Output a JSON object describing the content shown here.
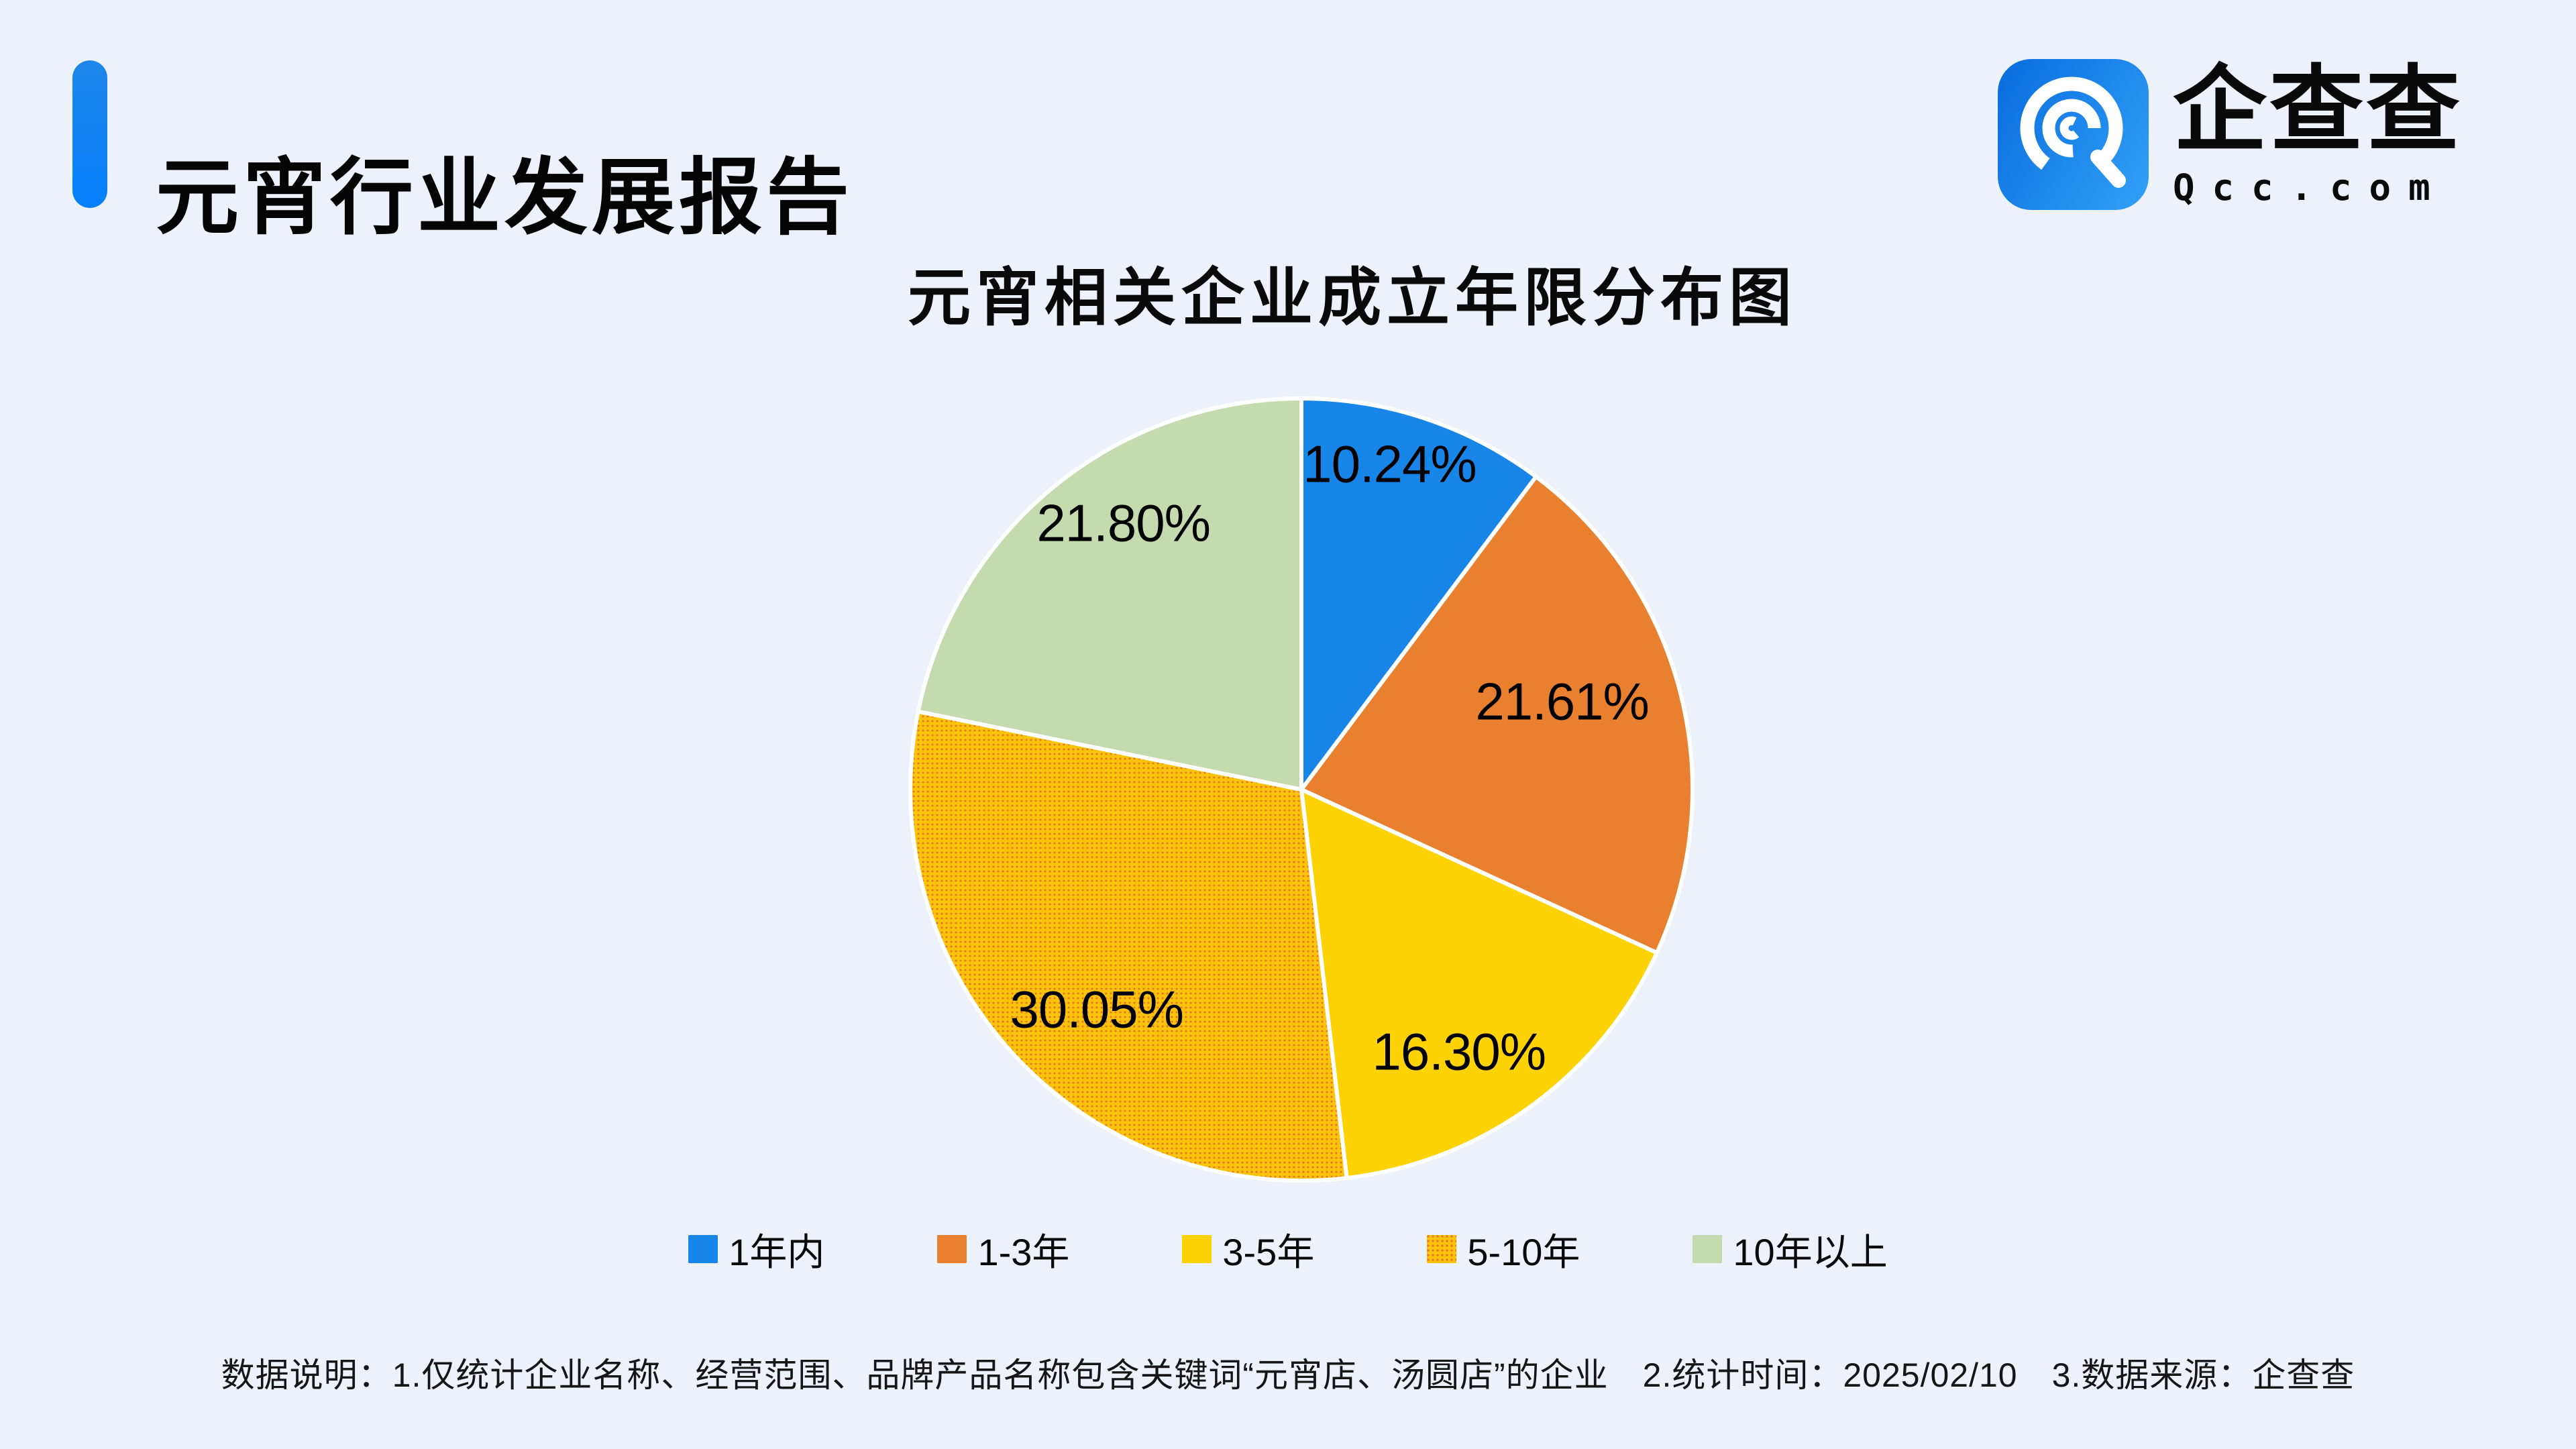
{
  "header": {
    "title": "元宵行业发展报告"
  },
  "brand": {
    "name": "企查查",
    "domain": "Qcc.com",
    "icon": "qcc-spiral-q-icon"
  },
  "chart": {
    "title": "元宵相关企业成立年限分布图"
  },
  "chart_data": {
    "type": "pie",
    "title": "元宵相关企业成立年限分布图",
    "unit": "percent",
    "start_angle_deg": 0,
    "direction": "clockwise",
    "legend_position": "bottom",
    "slices": [
      {
        "name": "1年内",
        "value": 10.24,
        "label": "10.24%",
        "color": "#1886E9",
        "fill_style": "solid",
        "label_pos": {
          "x_pct": 61.2,
          "y_pct": 8.7
        }
      },
      {
        "name": "1-3年",
        "value": 21.61,
        "label": "21.61%",
        "color": "#E8802F",
        "fill_style": "solid",
        "label_pos": {
          "x_pct": 83.1,
          "y_pct": 38.8
        }
      },
      {
        "name": "3-5年",
        "value": 16.3,
        "label": "16.30%",
        "color": "#FDD306",
        "fill_style": "solid",
        "label_pos": {
          "x_pct": 70.0,
          "y_pct": 83.3
        }
      },
      {
        "name": "5-10年",
        "value": 30.05,
        "label": "30.05%",
        "color": "#FBC40A",
        "fill_style": "dots",
        "dot_color": "#E87426",
        "label_pos": {
          "x_pct": 24.0,
          "y_pct": 77.9
        }
      },
      {
        "name": "10年以上",
        "value": 21.8,
        "label": "21.80%",
        "color": "#C5DAAF",
        "fill_style": "solid",
        "label_pos": {
          "x_pct": 27.4,
          "y_pct": 16.2
        }
      }
    ]
  },
  "footnote": {
    "text": "数据说明：1.仅统计企业名称、经营范围、品牌产品名称包含关键词“元宵店、汤圆店”的企业　2.统计时间：2025/02/10　3.数据来源：企查查"
  },
  "colors": {
    "background": "#EDF1FA",
    "accent_blue_top": "#1F86EA",
    "accent_blue_bottom": "#0680FB",
    "logo_blue_left": "#0C6FE0",
    "logo_blue_right": "#2F9DF6",
    "separator": "#FFFFFF",
    "text": "#0A0A0A"
  }
}
